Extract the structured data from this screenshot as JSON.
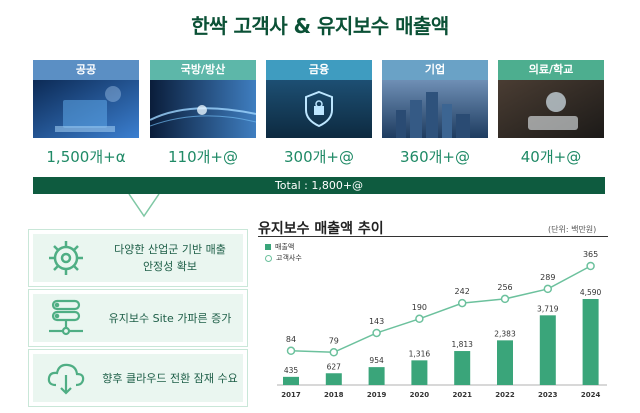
{
  "title": "한싹 고객사 & 유지보수 매출액",
  "categories": [
    {
      "label": "공공",
      "count": "1,500개+α",
      "color": "#5b8fc4"
    },
    {
      "label": "국방/방산",
      "count": "110개+@",
      "color": "#5db7a9"
    },
    {
      "label": "금융",
      "count": "300개+@",
      "color": "#3f9cc0"
    },
    {
      "label": "기업",
      "count": "360개+@",
      "color": "#6aa2c6"
    },
    {
      "label": "의료/학교",
      "count": "40개+@",
      "color": "#4dae8f"
    }
  ],
  "total": "Total : 1,800+@",
  "features": [
    {
      "text": "다양한 산업군 기반 매출\n안정성 확보",
      "icon": "gear-icon"
    },
    {
      "text": "유지보수 Site 가파른 증가",
      "icon": "network-nodes-icon"
    },
    {
      "text": "향후 클라우드 전환 잠재 수요",
      "icon": "cloud-download-icon"
    }
  ],
  "chart_data": {
    "type": "bar+line",
    "title": "유지보수 매출액 추이",
    "unit": "(단위: 백만원)",
    "categories": [
      "2017",
      "2018",
      "2019",
      "2020",
      "2021",
      "2022",
      "2023",
      "2024"
    ],
    "series": [
      {
        "name": "매출액",
        "type": "bar",
        "color": "#3aa57a",
        "values": [
          435,
          627,
          954,
          1316,
          1813,
          2383,
          3719,
          4590
        ],
        "labels": [
          "435",
          "627",
          "954",
          "1,316",
          "1,813",
          "2,383",
          "3,719",
          "4,590"
        ]
      },
      {
        "name": "고객사수",
        "type": "line",
        "color": "#6cc19d",
        "values": [
          84,
          79,
          143,
          190,
          242,
          256,
          289,
          365
        ],
        "labels": [
          "84",
          "79",
          "143",
          "190",
          "242",
          "256",
          "289",
          "365"
        ]
      }
    ]
  }
}
